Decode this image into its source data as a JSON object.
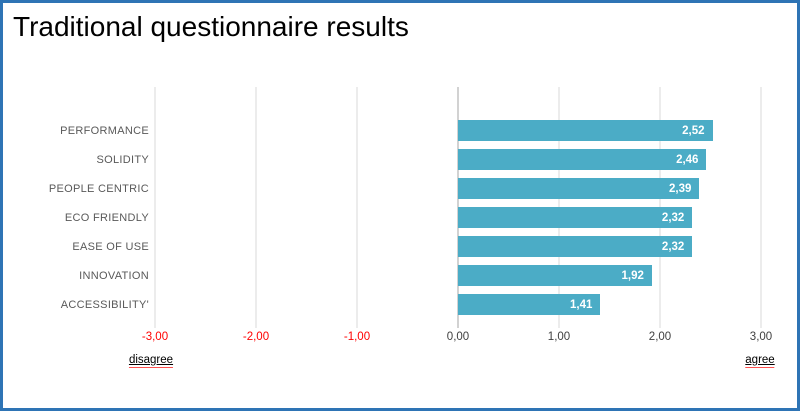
{
  "title": "Traditional questionnaire results",
  "chart_data": {
    "type": "bar",
    "orientation": "horizontal",
    "title": "Traditional questionnaire results",
    "categories": [
      "PERFORMANCE",
      "SOLIDITY",
      "PEOPLE CENTRIC",
      "ECO FRIENDLY",
      "EASE OF USE",
      "INNOVATION",
      "ACCESSIBILITY'"
    ],
    "values": [
      2.52,
      2.46,
      2.39,
      2.32,
      2.32,
      1.92,
      1.41
    ],
    "value_labels": [
      "2,52",
      "2,46",
      "2,39",
      "2,32",
      "2,32",
      "1,92",
      "1,41"
    ],
    "xlim": [
      -3,
      3
    ],
    "xticks": [
      -3,
      -2,
      -1,
      0,
      1,
      2,
      3
    ],
    "xtick_labels": [
      "-3,00",
      "-2,00",
      "-1,00",
      "0,00",
      "1,00",
      "2,00",
      "3,00"
    ],
    "axis_captions": {
      "left": "disagree",
      "right": "agree"
    },
    "grid": "vertical-only",
    "legend": "none",
    "colors": {
      "bar": "#4BACC6",
      "value_label": "#FFFFFF",
      "gridline": "#D9D9D9",
      "zero_axis_line": "#A6A6A6",
      "negative_tick_label": "#FF0000",
      "tick_label": "#404040",
      "category_label": "#595959",
      "frame_border": "#2E74B5",
      "caption_text": "#000000",
      "caption_underline": "#FF5050",
      "title_text": "#000000"
    }
  }
}
